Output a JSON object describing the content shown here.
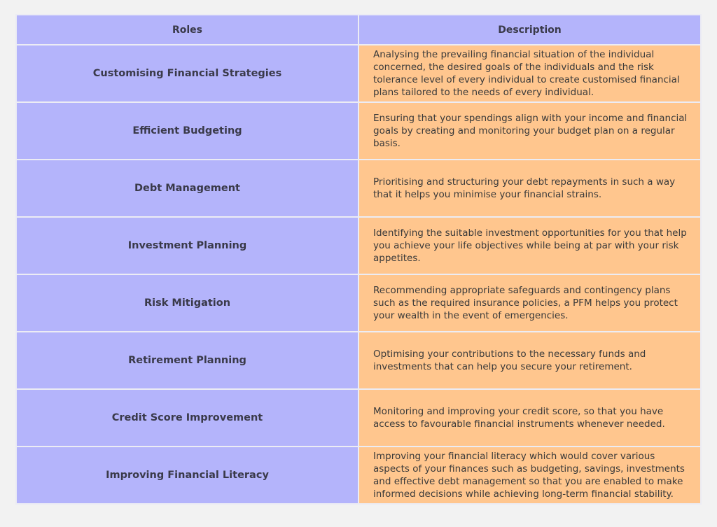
{
  "table": {
    "headers": [
      "Roles",
      "Description"
    ],
    "rows": [
      {
        "role": "Customising Financial Strategies",
        "description": "Analysing the prevailing financial situation of the individual concerned, the desired goals of the individuals and the risk tolerance level of every individual to create customised financial plans tailored to the needs of every individual."
      },
      {
        "role": "Efficient Budgeting",
        "description": "Ensuring that your spendings align with your income and financial goals by creating and monitoring your budget plan on a regular basis."
      },
      {
        "role": "Debt Management",
        "description": "Prioritising and structuring your debt repayments in such a way that it helps you minimise your financial strains."
      },
      {
        "role": "Investment Planning",
        "description": "Identifying the suitable investment opportunities for you that help you achieve your life objectives while being at par with your risk appetites."
      },
      {
        "role": "Risk Mitigation",
        "description": "Recommending appropriate safeguards and contingency plans such as the required insurance policies, a PFM helps you protect your wealth in the event of emergencies."
      },
      {
        "role": "Retirement Planning",
        "description": "Optimising your contributions to the necessary funds and investments that can help you secure your retirement."
      },
      {
        "role": "Credit Score Improvement",
        "description": "Monitoring and improving your credit score, so that you have access to favourable financial instruments whenever needed."
      },
      {
        "role": "Improving Financial Literacy",
        "description": "Improving your financial literacy which would cover various aspects of your finances such as budgeting, savings, investments and effective debt management so that you are enabled to make informed decisions while achieving long-term financial stability."
      }
    ]
  },
  "colors": {
    "header": "#b4b4fb",
    "role_cell": "#b4b4fb",
    "description_cell": "#ffc68e",
    "background": "#f2f2f2"
  }
}
